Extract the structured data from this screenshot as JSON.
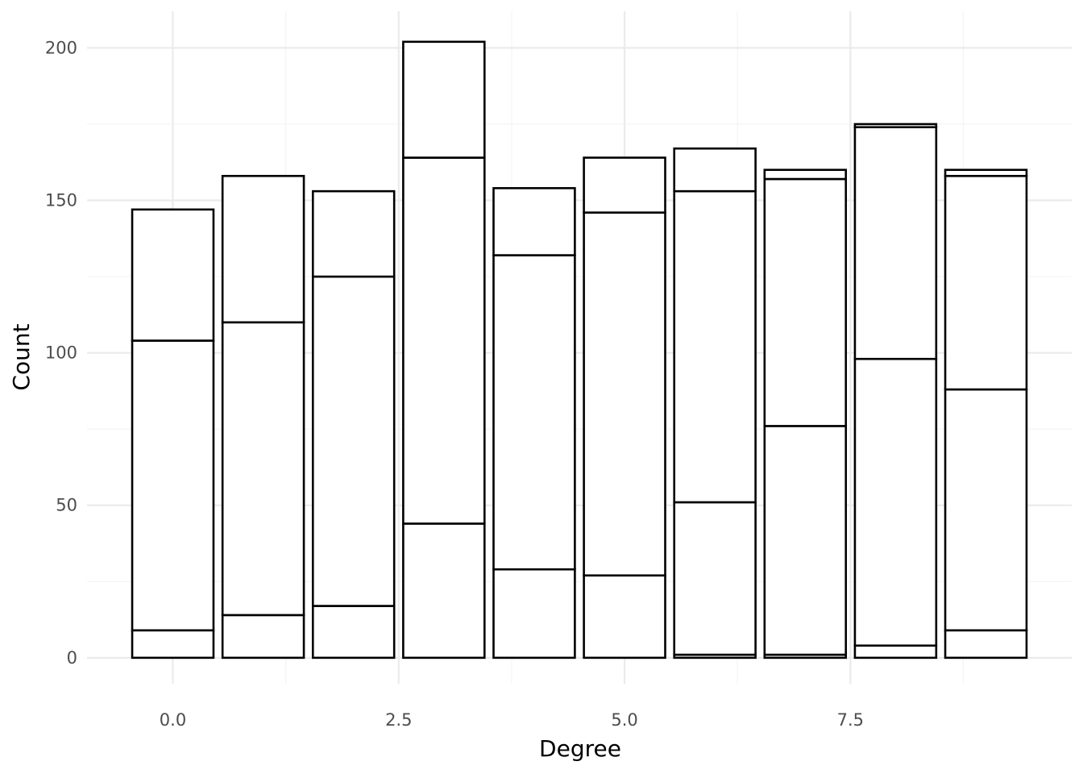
{
  "chart_data": {
    "type": "bar",
    "stacked": true,
    "title": "",
    "xlabel": "Degree",
    "ylabel": "Count",
    "x": [
      0,
      1,
      2,
      3,
      4,
      5,
      6,
      7,
      8,
      9
    ],
    "xlim": [
      -0.95,
      9.95
    ],
    "ylim": [
      -8.5,
      212
    ],
    "x_ticks": [
      0.0,
      2.5,
      5.0,
      7.5
    ],
    "x_tick_labels": [
      "0.0",
      "2.5",
      "5.0",
      "7.5"
    ],
    "y_ticks": [
      0,
      50,
      100,
      150,
      200
    ],
    "y_tick_labels": [
      "0",
      "50",
      "100",
      "150",
      "200"
    ],
    "bar_width": 0.9,
    "grid": true,
    "legend": "none",
    "colors": {
      "fill": "#ffffff",
      "outline": "#000000",
      "grid": "#ebebeb",
      "tick_text": "#4d4d4d"
    },
    "series": [
      {
        "values": [
          9,
          14,
          17,
          44,
          29,
          27,
          1,
          1,
          4,
          9
        ]
      },
      {
        "values": [
          95,
          96,
          108,
          120,
          103,
          119,
          50,
          75,
          94,
          79
        ]
      },
      {
        "values": [
          43,
          48,
          28,
          38,
          22,
          18,
          102,
          81,
          76,
          70
        ]
      },
      {
        "values": [
          0,
          0,
          0,
          0,
          0,
          0,
          14,
          3,
          1,
          2
        ]
      }
    ]
  }
}
